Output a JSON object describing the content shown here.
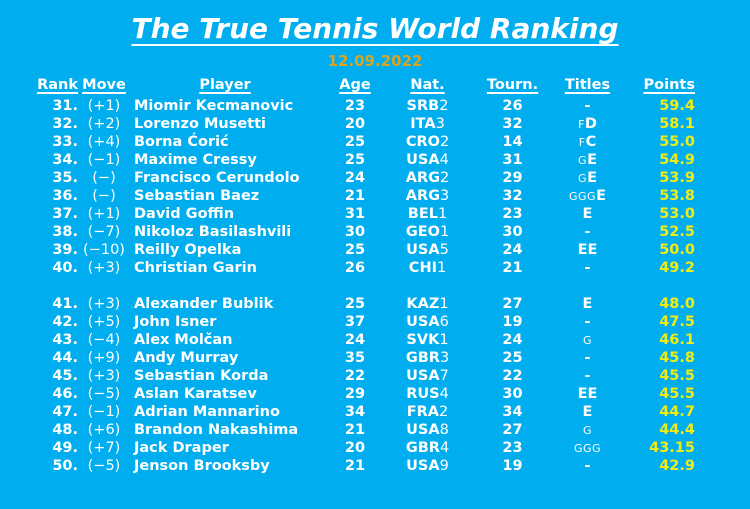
{
  "page": {
    "title": "The True Tennis World Ranking",
    "date": "12.09.2022",
    "colors": {
      "background": "#00AEEF",
      "text": "#FFFFFF",
      "date_gold": "#D9A421",
      "points_yellow": "#F2EC13"
    }
  },
  "table": {
    "headers": [
      "Rank",
      "Move",
      "Player",
      "Age",
      "Nat.",
      "Tourn.",
      "Titles",
      "Points"
    ],
    "group_break_after": "40.",
    "rows": [
      {
        "rank": "31.",
        "move": "(+1)",
        "player": "Miomir Kecmanovic",
        "age": "23",
        "nat_code": "SRB",
        "nat_num": "2",
        "tourn": "26",
        "titles_small": "",
        "titles_bold": "-",
        "points": "59.4"
      },
      {
        "rank": "32.",
        "move": "(+2)",
        "player": "Lorenzo Musetti",
        "age": "20",
        "nat_code": "ITA",
        "nat_num": "3",
        "tourn": "32",
        "titles_small": "F",
        "titles_bold": "D",
        "points": "58.1"
      },
      {
        "rank": "33.",
        "move": "(+4)",
        "player": "Borna Ćorić",
        "age": "25",
        "nat_code": "CRO",
        "nat_num": "2",
        "tourn": "14",
        "titles_small": "F",
        "titles_bold": "C",
        "points": "55.0"
      },
      {
        "rank": "34.",
        "move": "(−1)",
        "player": "Maxime Cressy",
        "age": "25",
        "nat_code": "USA",
        "nat_num": "4",
        "tourn": "31",
        "titles_small": "G",
        "titles_bold": "E",
        "points": "54.9"
      },
      {
        "rank": "35.",
        "move": "(−)",
        "player": "Francisco Cerundolo",
        "age": "24",
        "nat_code": "ARG",
        "nat_num": "2",
        "tourn": "29",
        "titles_small": "G",
        "titles_bold": "E",
        "points": "53.9"
      },
      {
        "rank": "36.",
        "move": "(−)",
        "player": "Sebastian Baez",
        "age": "21",
        "nat_code": "ARG",
        "nat_num": "3",
        "tourn": "32",
        "titles_small": "GGG",
        "titles_bold": "E",
        "points": "53.8"
      },
      {
        "rank": "37.",
        "move": "(+1)",
        "player": "David Goffin",
        "age": "31",
        "nat_code": "BEL",
        "nat_num": "1",
        "tourn": "23",
        "titles_small": "",
        "titles_bold": "E",
        "points": "53.0"
      },
      {
        "rank": "38.",
        "move": "(−7)",
        "player": "Nikoloz Basilashvili",
        "age": "30",
        "nat_code": "GEO",
        "nat_num": "1",
        "tourn": "30",
        "titles_small": "",
        "titles_bold": "-",
        "points": "52.5"
      },
      {
        "rank": "39.",
        "move": "(−10)",
        "player": "Reilly Opelka",
        "age": "25",
        "nat_code": "USA",
        "nat_num": "5",
        "tourn": "24",
        "titles_small": "",
        "titles_bold": "EE",
        "points": "50.0"
      },
      {
        "rank": "40.",
        "move": "(+3)",
        "player": "Christian Garin",
        "age": "26",
        "nat_code": "CHI",
        "nat_num": "1",
        "tourn": "21",
        "titles_small": "",
        "titles_bold": "-",
        "points": "49.2"
      },
      {
        "rank": "41.",
        "move": "(+3)",
        "player": "Alexander Bublik",
        "age": "25",
        "nat_code": "KAZ",
        "nat_num": "1",
        "tourn": "27",
        "titles_small": "",
        "titles_bold": "E",
        "points": "48.0"
      },
      {
        "rank": "42.",
        "move": "(+5)",
        "player": "John Isner",
        "age": "37",
        "nat_code": "USA",
        "nat_num": "6",
        "tourn": "19",
        "titles_small": "",
        "titles_bold": "-",
        "points": "47.5"
      },
      {
        "rank": "43.",
        "move": "(−4)",
        "player": "Alex Molčan",
        "age": "24",
        "nat_code": "SVK",
        "nat_num": "1",
        "tourn": "24",
        "titles_small": "G",
        "titles_bold": "",
        "points": "46.1"
      },
      {
        "rank": "44.",
        "move": "(+9)",
        "player": "Andy Murray",
        "age": "35",
        "nat_code": "GBR",
        "nat_num": "3",
        "tourn": "25",
        "titles_small": "",
        "titles_bold": "-",
        "points": "45.8"
      },
      {
        "rank": "45.",
        "move": "(+3)",
        "player": "Sebastian Korda",
        "age": "22",
        "nat_code": "USA",
        "nat_num": "7",
        "tourn": "22",
        "titles_small": "",
        "titles_bold": "-",
        "points": "45.5"
      },
      {
        "rank": "46.",
        "move": "(−5)",
        "player": "Aslan Karatsev",
        "age": "29",
        "nat_code": "RUS",
        "nat_num": "4",
        "tourn": "30",
        "titles_small": "",
        "titles_bold": "EE",
        "points": "45.5"
      },
      {
        "rank": "47.",
        "move": "(−1)",
        "player": "Adrian Mannarino",
        "age": "34",
        "nat_code": "FRA",
        "nat_num": "2",
        "tourn": "34",
        "titles_small": "",
        "titles_bold": "E",
        "points": "44.7"
      },
      {
        "rank": "48.",
        "move": "(+6)",
        "player": "Brandon Nakashima",
        "age": "21",
        "nat_code": "USA",
        "nat_num": "8",
        "tourn": "27",
        "titles_small": "G",
        "titles_bold": "",
        "points": "44.4"
      },
      {
        "rank": "49.",
        "move": "(+7)",
        "player": "Jack Draper",
        "age": "20",
        "nat_code": "GBR",
        "nat_num": "4",
        "tourn": "23",
        "titles_small": "GGG",
        "titles_bold": "",
        "points": "43.15"
      },
      {
        "rank": "50.",
        "move": "(−5)",
        "player": "Jenson Brooksby",
        "age": "21",
        "nat_code": "USA",
        "nat_num": "9",
        "tourn": "19",
        "titles_small": "",
        "titles_bold": "-",
        "points": "42.9"
      }
    ]
  },
  "chart_data": {
    "type": "table",
    "title": "The True Tennis World Ranking",
    "subtitle": "12.09.2022",
    "columns": [
      "Rank",
      "Move",
      "Player",
      "Age",
      "Nat.",
      "Tourn.",
      "Titles",
      "Points"
    ],
    "rows": [
      [
        31,
        "(+1)",
        "Miomir Kecmanovic",
        23,
        "SRB2",
        26,
        "-",
        59.4
      ],
      [
        32,
        "(+2)",
        "Lorenzo Musetti",
        20,
        "ITA3",
        32,
        "FD",
        58.1
      ],
      [
        33,
        "(+4)",
        "Borna Ćorić",
        25,
        "CRO2",
        14,
        "FC",
        55.0
      ],
      [
        34,
        "(−1)",
        "Maxime Cressy",
        25,
        "USA4",
        31,
        "GE",
        54.9
      ],
      [
        35,
        "(−)",
        "Francisco Cerundolo",
        24,
        "ARG2",
        29,
        "GE",
        53.9
      ],
      [
        36,
        "(−)",
        "Sebastian Baez",
        21,
        "ARG3",
        32,
        "GGGE",
        53.8
      ],
      [
        37,
        "(+1)",
        "David Goffin",
        31,
        "BEL1",
        23,
        "E",
        53.0
      ],
      [
        38,
        "(−7)",
        "Nikoloz Basilashvili",
        30,
        "GEO1",
        30,
        "-",
        52.5
      ],
      [
        39,
        "(−10)",
        "Reilly Opelka",
        25,
        "USA5",
        24,
        "EE",
        50.0
      ],
      [
        40,
        "(+3)",
        "Christian Garin",
        26,
        "CHI1",
        21,
        "-",
        49.2
      ],
      [
        41,
        "(+3)",
        "Alexander Bublik",
        25,
        "KAZ1",
        27,
        "E",
        48.0
      ],
      [
        42,
        "(+5)",
        "John Isner",
        37,
        "USA6",
        19,
        "-",
        47.5
      ],
      [
        43,
        "(−4)",
        "Alex Molčan",
        24,
        "SVK1",
        24,
        "G",
        46.1
      ],
      [
        44,
        "(+9)",
        "Andy Murray",
        35,
        "GBR3",
        25,
        "-",
        45.8
      ],
      [
        45,
        "(+3)",
        "Sebastian Korda",
        22,
        "USA7",
        22,
        "-",
        45.5
      ],
      [
        46,
        "(−5)",
        "Aslan Karatsev",
        29,
        "RUS4",
        30,
        "EE",
        45.5
      ],
      [
        47,
        "(−1)",
        "Adrian Mannarino",
        34,
        "FRA2",
        34,
        "E",
        44.7
      ],
      [
        48,
        "(+6)",
        "Brandon Nakashima",
        21,
        "USA8",
        27,
        "G",
        44.4
      ],
      [
        49,
        "(+7)",
        "Jack Draper",
        20,
        "GBR4",
        23,
        "GGG",
        43.15
      ],
      [
        50,
        "(−5)",
        "Jenson Brooksby",
        21,
        "USA9",
        19,
        "-",
        42.9
      ]
    ],
    "notes": "Rows 31-40 and 41-50 are separated by a blank line. Titles column mixes small plain letters (e.g. F, G, GGG) with large bold letters (e.g. D, C, E, EE). Points are yellow, date is gold, all other text white on cyan-blue background."
  }
}
